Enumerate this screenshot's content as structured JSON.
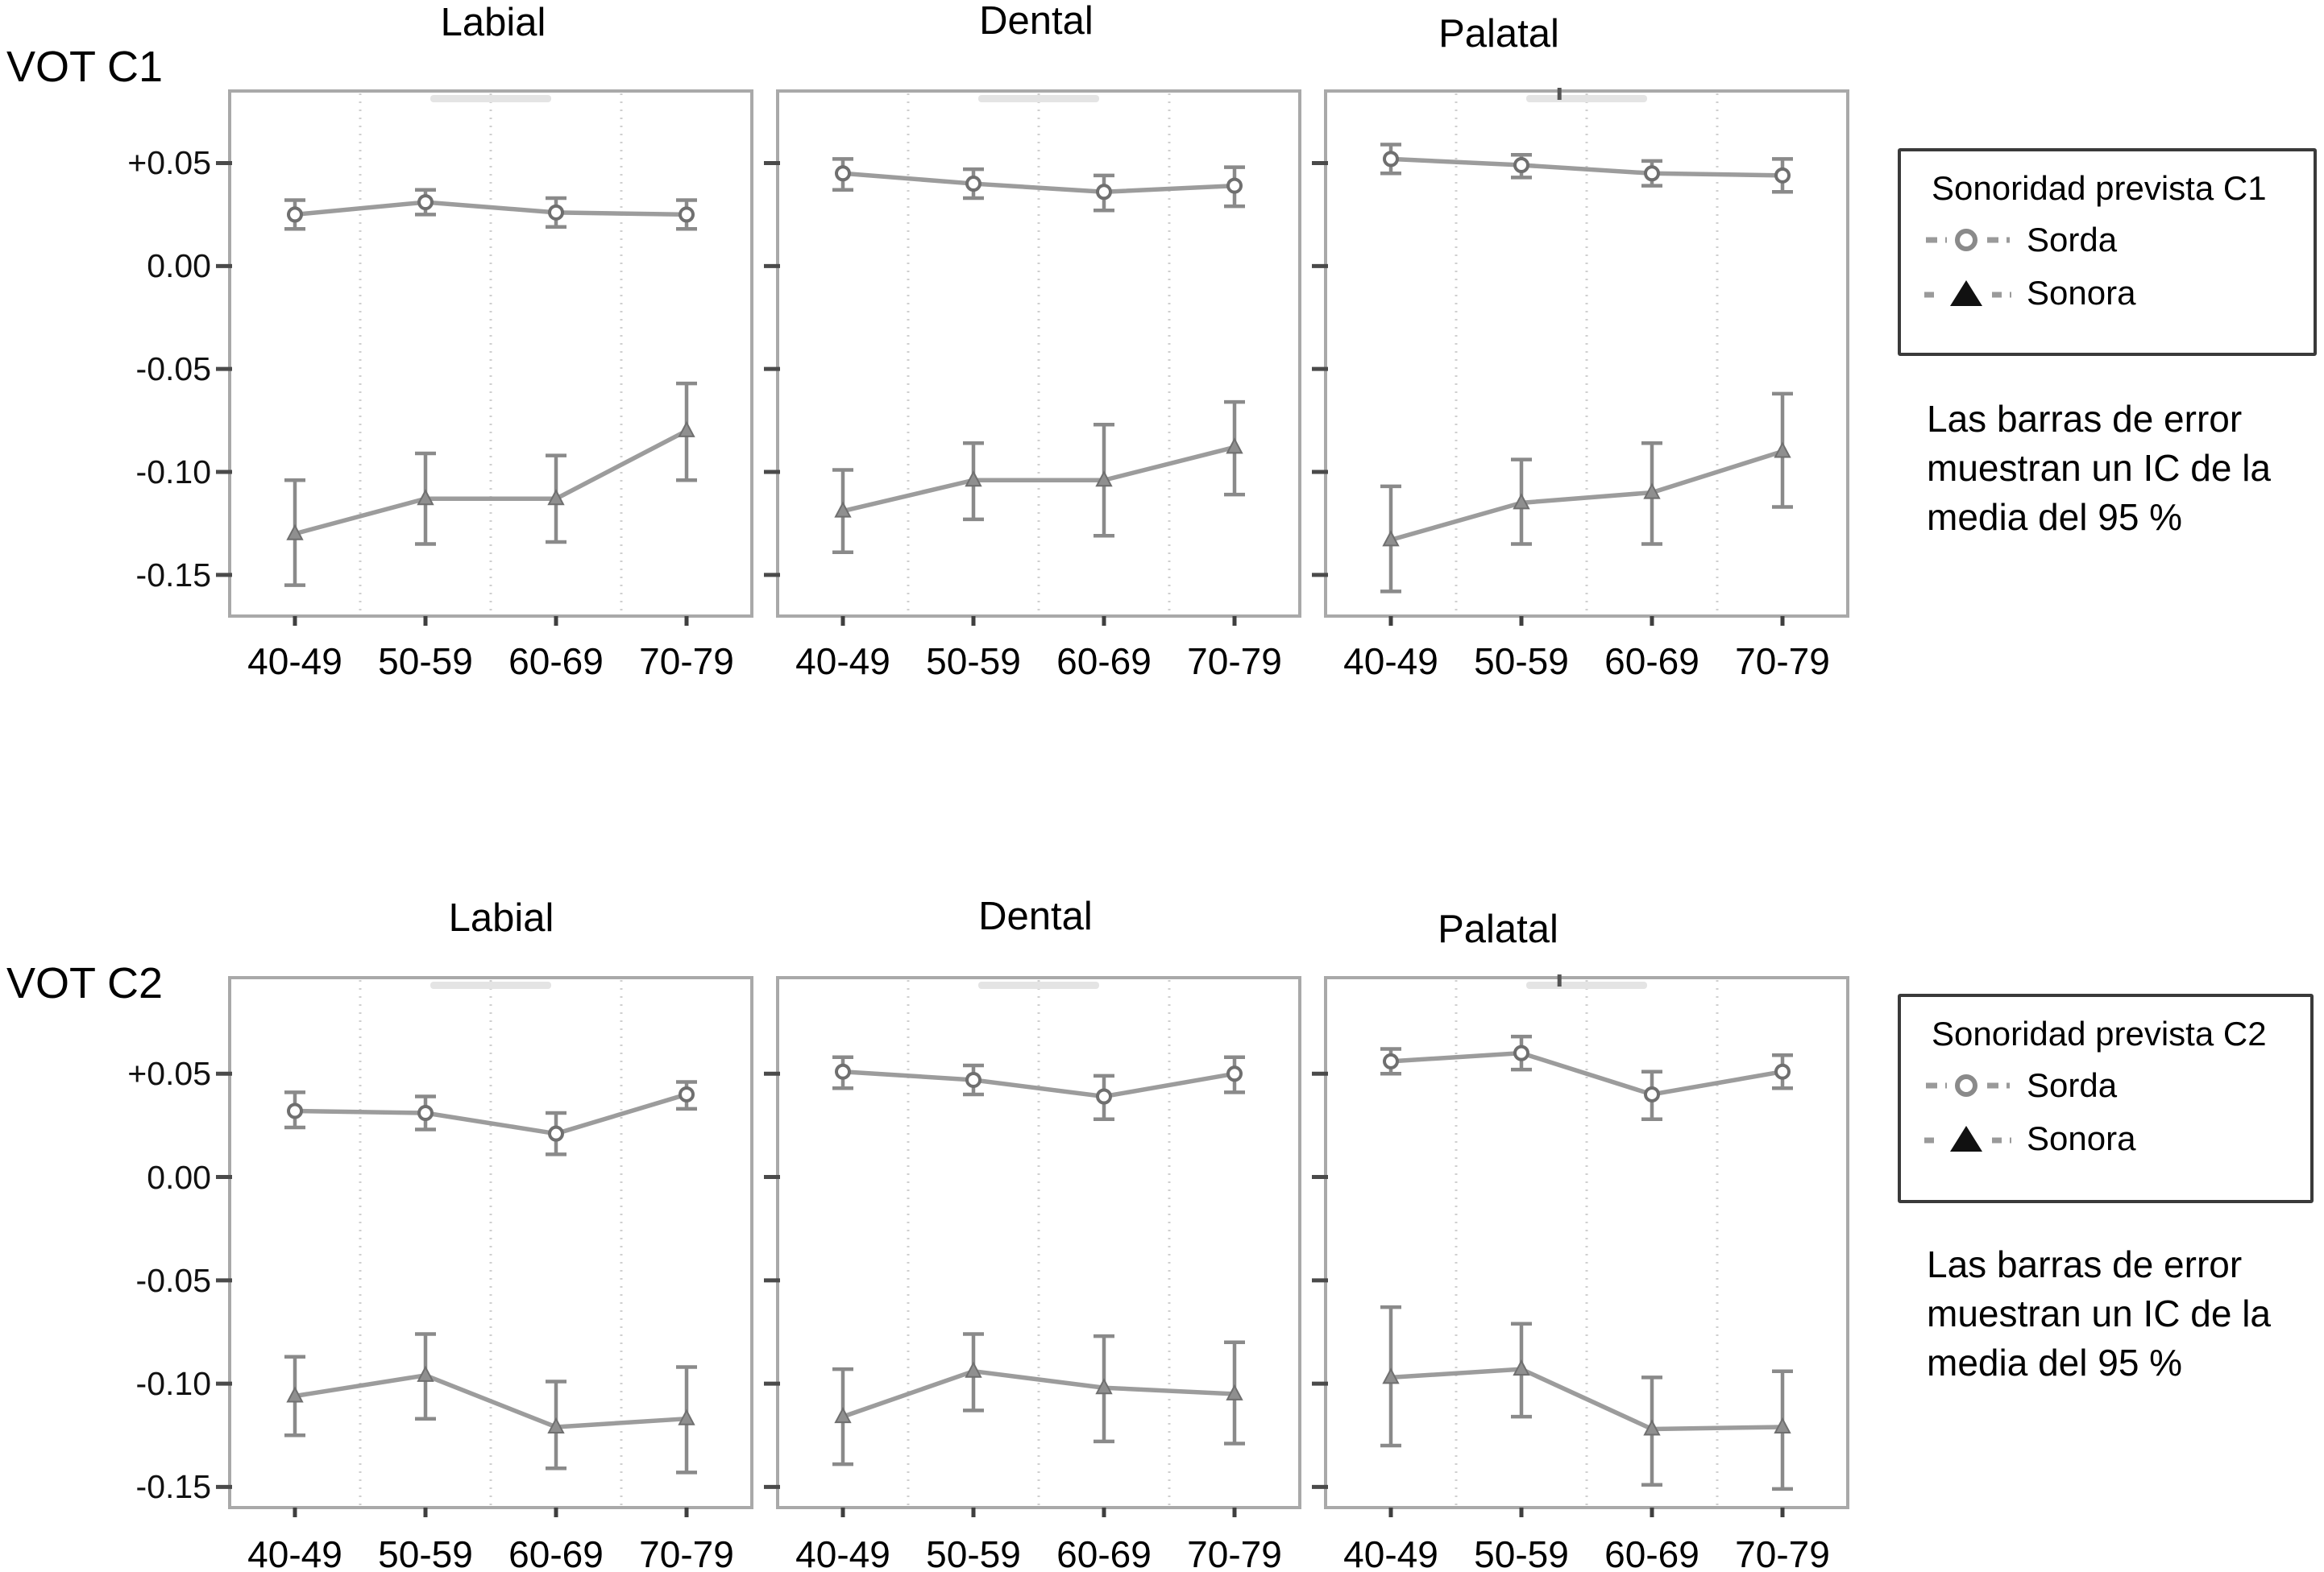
{
  "figure_type": "error-bar line chart grid (2 rows x 3 columns)",
  "rows": [
    {
      "label": "VOT C1",
      "titles": [
        "Labial",
        "Dental",
        "Palatal"
      ],
      "y_tick_labels": [
        "+0.05",
        "0.00",
        "-0.05",
        "-0.10",
        "-0.15"
      ],
      "x_tick_labels": [
        "40-49",
        "50-59",
        "60-69",
        "70-79"
      ],
      "legend": {
        "title": "Sonoridad prevista C1",
        "items": [
          {
            "marker": "open-circle",
            "label": "Sorda"
          },
          {
            "marker": "filled-triangle",
            "label": "Sonora"
          }
        ]
      },
      "note": [
        "Las barras de error",
        "muestran un IC de la",
        "media del 95 %"
      ]
    },
    {
      "label": "VOT C2",
      "titles": [
        "Labial",
        "Dental",
        "Palatal"
      ],
      "y_tick_labels": [
        "+0.05",
        "0.00",
        "-0.05",
        "-0.10",
        "-0.15"
      ],
      "x_tick_labels": [
        "40-49",
        "50-59",
        "60-69",
        "70-79"
      ],
      "legend": {
        "title": "Sonoridad prevista C2",
        "items": [
          {
            "marker": "open-circle",
            "label": "Sorda"
          },
          {
            "marker": "filled-triangle",
            "label": "Sonora"
          }
        ]
      },
      "note": [
        "Las barras de error",
        "muestran un IC de la",
        "media del 95 %"
      ]
    }
  ],
  "chart_data": [
    {
      "type": "line",
      "group": "VOT C1",
      "title": "Labial",
      "categories": [
        "40-49",
        "50-59",
        "60-69",
        "70-79"
      ],
      "xlabel": "",
      "ylabel": "",
      "ylim": [
        -0.17,
        0.085
      ],
      "yticks": [
        0.05,
        0.0,
        -0.05,
        -0.1,
        -0.15
      ],
      "grid": "vertical-dotted",
      "series": [
        {
          "name": "Sorda",
          "values": [
            0.025,
            0.031,
            0.026,
            0.025
          ],
          "ci_low": [
            0.018,
            0.025,
            0.019,
            0.018
          ],
          "ci_high": [
            0.032,
            0.037,
            0.033,
            0.032
          ]
        },
        {
          "name": "Sonora",
          "values": [
            -0.13,
            -0.113,
            -0.113,
            -0.08
          ],
          "ci_low": [
            -0.155,
            -0.135,
            -0.134,
            -0.104
          ],
          "ci_high": [
            -0.104,
            -0.091,
            -0.092,
            -0.057
          ]
        }
      ]
    },
    {
      "type": "line",
      "group": "VOT C1",
      "title": "Dental",
      "categories": [
        "40-49",
        "50-59",
        "60-69",
        "70-79"
      ],
      "xlabel": "",
      "ylabel": "",
      "ylim": [
        -0.17,
        0.085
      ],
      "yticks": [
        0.05,
        0.0,
        -0.05,
        -0.1,
        -0.15
      ],
      "grid": "vertical-dotted",
      "series": [
        {
          "name": "Sorda",
          "values": [
            0.045,
            0.04,
            0.036,
            0.039
          ],
          "ci_low": [
            0.037,
            0.033,
            0.027,
            0.029
          ],
          "ci_high": [
            0.052,
            0.047,
            0.044,
            0.048
          ]
        },
        {
          "name": "Sonora",
          "values": [
            -0.119,
            -0.104,
            -0.104,
            -0.088
          ],
          "ci_low": [
            -0.139,
            -0.123,
            -0.131,
            -0.111
          ],
          "ci_high": [
            -0.099,
            -0.086,
            -0.077,
            -0.066
          ]
        }
      ]
    },
    {
      "type": "line",
      "group": "VOT C1",
      "title": "Palatal",
      "categories": [
        "40-49",
        "50-59",
        "60-69",
        "70-79"
      ],
      "xlabel": "",
      "ylabel": "",
      "ylim": [
        -0.17,
        0.085
      ],
      "yticks": [
        0.05,
        0.0,
        -0.05,
        -0.1,
        -0.15
      ],
      "grid": "vertical-dotted",
      "series": [
        {
          "name": "Sorda",
          "values": [
            0.052,
            0.049,
            0.045,
            0.044
          ],
          "ci_low": [
            0.045,
            0.043,
            0.039,
            0.036
          ],
          "ci_high": [
            0.059,
            0.054,
            0.051,
            0.052
          ]
        },
        {
          "name": "Sonora",
          "values": [
            -0.133,
            -0.115,
            -0.11,
            -0.09
          ],
          "ci_low": [
            -0.158,
            -0.135,
            -0.135,
            -0.117
          ],
          "ci_high": [
            -0.107,
            -0.094,
            -0.086,
            -0.062
          ]
        }
      ]
    },
    {
      "type": "line",
      "group": "VOT C2",
      "title": "Labial",
      "categories": [
        "40-49",
        "50-59",
        "60-69",
        "70-79"
      ],
      "xlabel": "",
      "ylabel": "",
      "ylim": [
        -0.16,
        0.0965
      ],
      "yticks": [
        0.05,
        0.0,
        -0.05,
        -0.1,
        -0.15
      ],
      "grid": "vertical-dotted",
      "series": [
        {
          "name": "Sorda",
          "values": [
            0.032,
            0.031,
            0.021,
            0.04
          ],
          "ci_low": [
            0.024,
            0.023,
            0.011,
            0.033
          ],
          "ci_high": [
            0.041,
            0.039,
            0.031,
            0.046
          ]
        },
        {
          "name": "Sonora",
          "values": [
            -0.106,
            -0.096,
            -0.121,
            -0.117
          ],
          "ci_low": [
            -0.125,
            -0.117,
            -0.141,
            -0.143
          ],
          "ci_high": [
            -0.087,
            -0.076,
            -0.099,
            -0.092
          ]
        }
      ]
    },
    {
      "type": "line",
      "group": "VOT C2",
      "title": "Dental",
      "categories": [
        "40-49",
        "50-59",
        "60-69",
        "70-79"
      ],
      "xlabel": "",
      "ylabel": "",
      "ylim": [
        -0.16,
        0.0965
      ],
      "yticks": [
        0.05,
        0.0,
        -0.05,
        -0.1,
        -0.15
      ],
      "grid": "vertical-dotted",
      "series": [
        {
          "name": "Sorda",
          "values": [
            0.051,
            0.047,
            0.039,
            0.05
          ],
          "ci_low": [
            0.043,
            0.04,
            0.028,
            0.041
          ],
          "ci_high": [
            0.058,
            0.054,
            0.049,
            0.058
          ]
        },
        {
          "name": "Sonora",
          "values": [
            -0.116,
            -0.094,
            -0.102,
            -0.105
          ],
          "ci_low": [
            -0.139,
            -0.113,
            -0.128,
            -0.129
          ],
          "ci_high": [
            -0.093,
            -0.076,
            -0.077,
            -0.08
          ]
        }
      ]
    },
    {
      "type": "line",
      "group": "VOT C2",
      "title": "Palatal",
      "categories": [
        "40-49",
        "50-59",
        "60-69",
        "70-79"
      ],
      "xlabel": "",
      "ylabel": "",
      "ylim": [
        -0.16,
        0.0965
      ],
      "yticks": [
        0.05,
        0.0,
        -0.05,
        -0.1,
        -0.15
      ],
      "grid": "vertical-dotted",
      "series": [
        {
          "name": "Sorda",
          "values": [
            0.056,
            0.06,
            0.04,
            0.051
          ],
          "ci_low": [
            0.05,
            0.052,
            0.028,
            0.043
          ],
          "ci_high": [
            0.062,
            0.068,
            0.051,
            0.059
          ]
        },
        {
          "name": "Sonora",
          "values": [
            -0.097,
            -0.093,
            -0.122,
            -0.121
          ],
          "ci_low": [
            -0.13,
            -0.116,
            -0.149,
            -0.151
          ],
          "ci_high": [
            -0.063,
            -0.071,
            -0.097,
            -0.094
          ]
        }
      ]
    }
  ],
  "colors": {
    "series_line": "#9c9c9c",
    "error_bar": "#8a8a8a",
    "marker_stroke": "#6f6f6f",
    "triangle_fill_plot": "#8f8f8f",
    "triangle_fill_legend": "#111111",
    "panel_border": "#a9a9a9",
    "gridline": "#cfcfcf",
    "axis_tick": "#4a4a4a",
    "text": "#000000"
  }
}
